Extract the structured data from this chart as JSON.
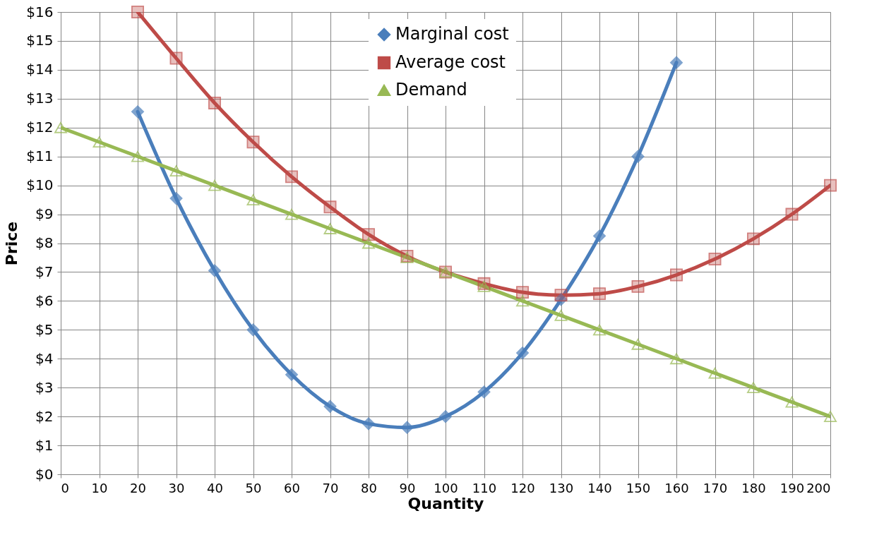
{
  "chart_data": {
    "type": "line",
    "xlabel": "Quantity",
    "ylabel": "Price",
    "x": [
      0,
      10,
      20,
      30,
      40,
      50,
      60,
      70,
      80,
      90,
      100,
      110,
      120,
      130,
      140,
      150,
      160,
      170,
      180,
      190,
      200
    ],
    "series": [
      {
        "name": "Marginal cost",
        "color": "#4a7ebb",
        "marker": "diamond",
        "values": [
          null,
          null,
          12.55,
          9.55,
          7.05,
          5.0,
          3.45,
          2.35,
          1.75,
          1.62,
          2.0,
          2.85,
          4.2,
          6.05,
          8.25,
          11.0,
          14.25,
          null,
          null,
          null,
          null
        ]
      },
      {
        "name": "Average cost",
        "color": "#be4b48",
        "marker": "square",
        "values": [
          null,
          null,
          16.0,
          14.4,
          12.85,
          11.5,
          10.3,
          9.25,
          8.3,
          7.55,
          7.0,
          6.6,
          6.3,
          6.2,
          6.25,
          6.5,
          6.9,
          7.45,
          8.15,
          9.0,
          10.0
        ]
      },
      {
        "name": "Demand",
        "color": "#98b954",
        "marker": "triangle",
        "values": [
          12,
          11.5,
          11,
          10.5,
          10,
          9.5,
          9,
          8.5,
          8,
          7.5,
          7,
          6.5,
          6,
          5.5,
          5,
          4.5,
          4,
          3.5,
          3,
          2.5,
          2
        ]
      }
    ],
    "xlim": [
      0,
      200
    ],
    "xticks": [
      0,
      10,
      20,
      30,
      40,
      50,
      60,
      70,
      80,
      90,
      100,
      110,
      120,
      130,
      140,
      150,
      160,
      170,
      180,
      190,
      200
    ],
    "ylim": [
      0,
      16
    ],
    "yticks": [
      {
        "value": 0,
        "label": "$0"
      },
      {
        "value": 1,
        "label": "$1"
      },
      {
        "value": 2,
        "label": "$2"
      },
      {
        "value": 3,
        "label": "$3"
      },
      {
        "value": 4,
        "label": "$4"
      },
      {
        "value": 5,
        "label": "$5"
      },
      {
        "value": 6,
        "label": "$6"
      },
      {
        "value": 7,
        "label": "$7"
      },
      {
        "value": 8,
        "label": "$8"
      },
      {
        "value": 9,
        "label": "$9"
      },
      {
        "value": 10,
        "label": "$10"
      },
      {
        "value": 11,
        "label": "$11"
      },
      {
        "value": 12,
        "label": "$12"
      },
      {
        "value": 13,
        "label": "$13"
      },
      {
        "value": 14,
        "label": "$14"
      },
      {
        "value": 15,
        "label": "$15"
      },
      {
        "value": 16,
        "label": "$16"
      }
    ],
    "grid": true,
    "legend": "top",
    "line_style": "solid"
  }
}
